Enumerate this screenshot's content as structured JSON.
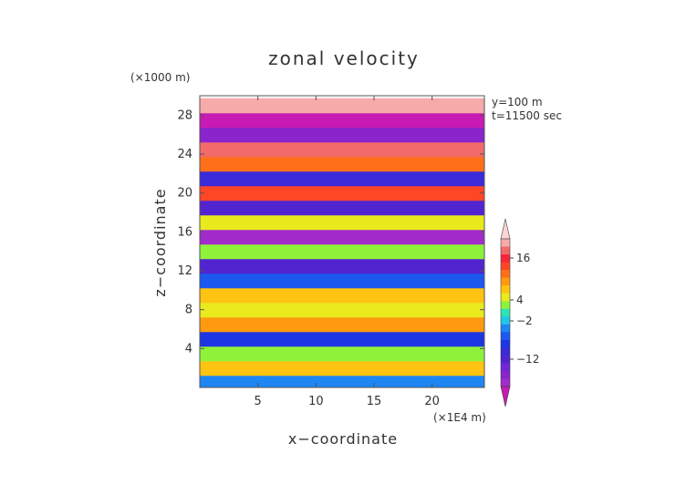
{
  "chart_data": {
    "type": "heatmap",
    "title": "zonal velocity",
    "xlabel": "x−coordinate",
    "ylabel": "z−coordinate",
    "x_unit": "(×1E4 m)",
    "y_unit": "(×1000 m)",
    "annotations": [
      "y=100 m",
      "t=11500 sec"
    ],
    "xlim": [
      0,
      24.5
    ],
    "ylim": [
      0,
      30
    ],
    "x_ticks": [
      5,
      10,
      15,
      20
    ],
    "y_ticks": [
      4,
      8,
      12,
      16,
      20,
      24,
      28
    ],
    "colorbar": {
      "orientation": "vertical",
      "placement": "right",
      "tick_labels": [
        "16",
        "4",
        "−2",
        "−12"
      ],
      "levels": [
        -20,
        -18,
        -16,
        -14,
        -12,
        -10,
        -8,
        -6,
        -4,
        -2,
        0,
        2,
        4,
        6,
        8,
        10,
        12,
        14,
        16,
        18,
        20
      ],
      "colors": [
        "#c81ab4",
        "#a22bcb",
        "#8a24cc",
        "#6f27d8",
        "#5224d0",
        "#3a2ad8",
        "#1d36e3",
        "#1a58ef",
        "#1e86f2",
        "#21c6e6",
        "#2fe3b2",
        "#8ff23a",
        "#e8ea1e",
        "#ffc411",
        "#ff9a10",
        "#ff6f1a",
        "#ff4626",
        "#f7253a",
        "#f36a6a",
        "#f6aaaa",
        "#fbd4d4"
      ]
    },
    "bands": [
      {
        "z": 0.5,
        "value": -2
      },
      {
        "z": 2.0,
        "value": 7
      },
      {
        "z": 3.5,
        "value": 3
      },
      {
        "z": 5.0,
        "value": -6
      },
      {
        "z": 6.5,
        "value": 9
      },
      {
        "z": 8.0,
        "value": 5
      },
      {
        "z": 9.5,
        "value": 8
      },
      {
        "z": 11.0,
        "value": -4
      },
      {
        "z": 12.5,
        "value": -11
      },
      {
        "z": 14.0,
        "value": 4
      },
      {
        "z": 15.5,
        "value": -16
      },
      {
        "z": 17.0,
        "value": 6
      },
      {
        "z": 18.5,
        "value": -10
      },
      {
        "z": 20.0,
        "value": 13
      },
      {
        "z": 21.5,
        "value": -9
      },
      {
        "z": 23.0,
        "value": 11
      },
      {
        "z": 24.5,
        "value": 17
      },
      {
        "z": 26.0,
        "value": -14
      },
      {
        "z": 27.5,
        "value": -18
      },
      {
        "z": 29.0,
        "value": 19
      }
    ]
  }
}
